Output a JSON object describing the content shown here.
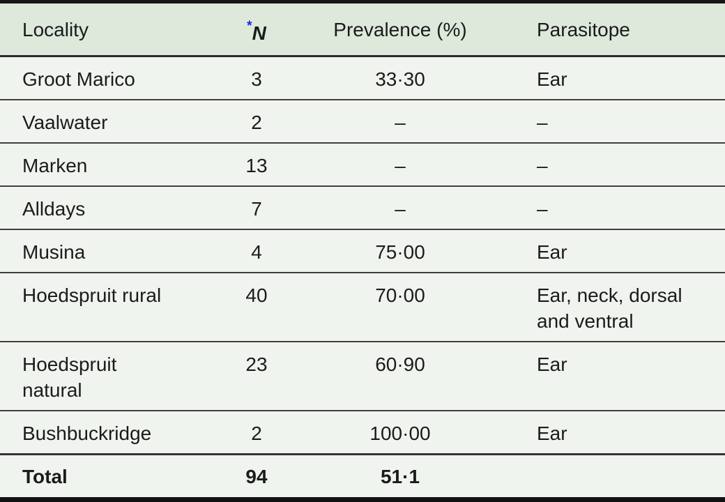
{
  "table": {
    "header": {
      "locality": "Locality",
      "n_marker": "*",
      "n": "N",
      "prevalence": "Prevalence (%)",
      "parasitope": "Parasitope"
    },
    "rows": [
      {
        "locality": "Groot Marico",
        "n": "3",
        "prevalence": "33·30",
        "parasitope": "Ear"
      },
      {
        "locality": "Vaalwater",
        "n": "2",
        "prevalence": "–",
        "parasitope": "–"
      },
      {
        "locality": "Marken",
        "n": "13",
        "prevalence": "–",
        "parasitope": "–"
      },
      {
        "locality": "Alldays",
        "n": "7",
        "prevalence": "–",
        "parasitope": "–"
      },
      {
        "locality": "Musina",
        "n": "4",
        "prevalence": "75·00",
        "parasitope": "Ear"
      },
      {
        "locality": "Hoedspruit rural",
        "n": "40",
        "prevalence": "70·00",
        "parasitope": "Ear, neck, dorsal\nand ventral"
      },
      {
        "locality": "Hoedspruit\nnatural",
        "n": "23",
        "prevalence": "60·90",
        "parasitope": "Ear"
      },
      {
        "locality": "Bushbuckridge",
        "n": "2",
        "prevalence": "100·00",
        "parasitope": "Ear"
      }
    ],
    "total": {
      "locality": "Total",
      "n": "94",
      "prevalence": "51·1",
      "parasitope": ""
    },
    "colors": {
      "header_background": "#dee8db",
      "row_background": "#f0f4ee",
      "rule_dark": "#161616",
      "separator": "#3f3f3f",
      "asterisk_blue": "#2323e8",
      "text": "#1b1b1b"
    }
  }
}
